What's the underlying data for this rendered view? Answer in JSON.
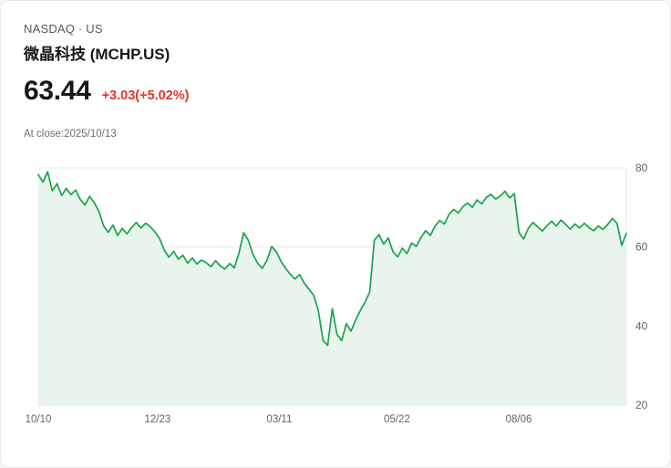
{
  "card": {
    "exchange_line": "NASDAQ · US",
    "title": "微晶科技 (MCHP.US)",
    "price": "63.44",
    "change": "+3.03(+5.02%)",
    "at_close": "At close:2025/10/13"
  },
  "colors": {
    "line": "#18a34e",
    "area": "#e8f4ec",
    "change": "#e5342c",
    "text_primary": "#17181a",
    "text_secondary": "#55595f",
    "grid": "#e8e8e8",
    "grid_bottom": "#d9d9d9",
    "tick": "#5f6469"
  },
  "chart_data": {
    "type": "line",
    "title": "MCHP.US one-year closing price",
    "series_name": "MCHP.US",
    "ylim": [
      20,
      80
    ],
    "yticks": [
      80,
      60,
      40,
      20
    ],
    "grid": true,
    "legend": false,
    "xticks": [
      {
        "label": "10/10",
        "pos": 0
      },
      {
        "label": "12/23",
        "pos": 0.203
      },
      {
        "label": "03/11",
        "pos": 0.41
      },
      {
        "label": "05/22",
        "pos": 0.61
      },
      {
        "label": "08/06",
        "pos": 0.817
      }
    ],
    "values": [
      78.3,
      76.4,
      79.0,
      74.2,
      76.0,
      73.0,
      74.8,
      73.2,
      74.4,
      72.0,
      70.6,
      72.8,
      71.2,
      69.0,
      65.3,
      63.7,
      65.5,
      62.9,
      64.7,
      63.3,
      64.9,
      66.2,
      64.8,
      66.0,
      65.1,
      63.8,
      62.1,
      59.2,
      57.4,
      58.9,
      56.9,
      57.9,
      55.9,
      57.2,
      55.7,
      56.7,
      56.0,
      55.0,
      56.5,
      55.2,
      54.4,
      55.8,
      54.7,
      58.4,
      63.6,
      61.7,
      58.1,
      55.9,
      54.6,
      56.6,
      60.1,
      58.8,
      56.4,
      54.6,
      53.1,
      51.9,
      53.0,
      50.8,
      49.3,
      47.8,
      44.0,
      36.4,
      35.1,
      44.4,
      37.9,
      36.3,
      40.6,
      38.7,
      41.5,
      43.9,
      46.0,
      48.6,
      61.7,
      63.1,
      60.7,
      62.3,
      58.8,
      57.5,
      59.7,
      58.3,
      61.0,
      60.1,
      62.4,
      64.1,
      62.9,
      65.2,
      66.7,
      65.8,
      68.2,
      69.5,
      68.6,
      70.2,
      71.1,
      70.0,
      71.9,
      70.9,
      72.5,
      73.3,
      72.1,
      72.9,
      74.1,
      72.4,
      73.5,
      63.6,
      62.0,
      64.7,
      66.2,
      65.1,
      64.0,
      65.4,
      66.5,
      65.3,
      66.8,
      65.7,
      64.5,
      65.8,
      64.8,
      66.0,
      64.9,
      64.1,
      65.3,
      64.4,
      65.7,
      67.2,
      66.0,
      60.4,
      63.44
    ]
  }
}
